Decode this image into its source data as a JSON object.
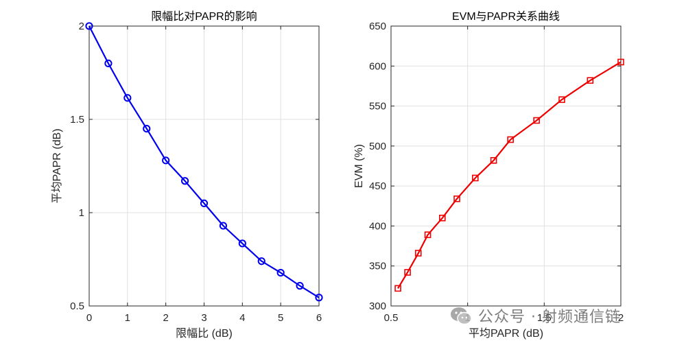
{
  "chart_data": [
    {
      "type": "line",
      "title": "限幅比对PAPR的影响",
      "xlabel": "限幅比 (dB)",
      "ylabel": "平均PAPR (dB)",
      "xlim": [
        0,
        6
      ],
      "ylim": [
        0.5,
        2
      ],
      "xticks": [
        0,
        1,
        2,
        3,
        4,
        5,
        6
      ],
      "xtick_labels": [
        "0",
        "1",
        "2",
        "3",
        "4",
        "5",
        "6"
      ],
      "yticks": [
        0.5,
        1,
        1.5,
        2
      ],
      "ytick_labels": [
        "0.5",
        "1",
        "1.5",
        "2"
      ],
      "grid": true,
      "series": [
        {
          "color": "#0000ee",
          "marker": "circle",
          "x": [
            0,
            0.5,
            1,
            1.5,
            2,
            2.5,
            3,
            3.5,
            4,
            4.5,
            5,
            5.5,
            6
          ],
          "y": [
            2.0,
            1.8,
            1.615,
            1.45,
            1.28,
            1.17,
            1.05,
            0.93,
            0.835,
            0.74,
            0.678,
            0.608,
            0.545
          ]
        }
      ]
    },
    {
      "type": "line",
      "title": "EVM与PAPR关系曲线",
      "xlabel": "平均PAPR (dB)",
      "ylabel": "EVM (%)",
      "xlim": [
        0.5,
        2
      ],
      "ylim": [
        300,
        650
      ],
      "xticks": [
        0.5,
        1,
        1.5,
        2
      ],
      "xtick_labels": [
        "0.5",
        "1",
        "1.5",
        "2"
      ],
      "yticks": [
        300,
        350,
        400,
        450,
        500,
        550,
        600,
        650
      ],
      "ytick_labels": [
        "300",
        "350",
        "400",
        "450",
        "500",
        "550",
        "600",
        "650"
      ],
      "grid": true,
      "series": [
        {
          "color": "#ee0000",
          "marker": "square",
          "x": [
            0.545,
            0.608,
            0.678,
            0.74,
            0.835,
            0.93,
            1.05,
            1.17,
            1.28,
            1.45,
            1.615,
            1.8,
            2.0
          ],
          "y": [
            322,
            342,
            366,
            389,
            410,
            434,
            460,
            482,
            508,
            532,
            558,
            582,
            605
          ]
        }
      ]
    }
  ],
  "watermark": {
    "text": "公众号 · 射频通信链",
    "icon": "wechat-icon"
  }
}
